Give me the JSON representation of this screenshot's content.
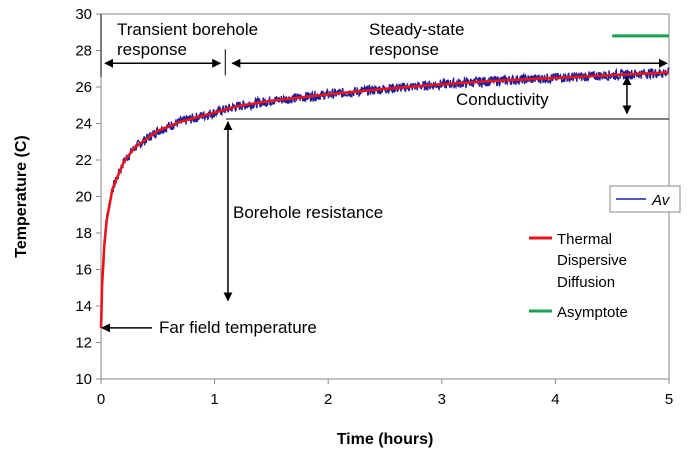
{
  "chart_data": {
    "type": "line",
    "xlabel": "Time (hours)",
    "ylabel": "Temperature (C)",
    "xlim": [
      0,
      5
    ],
    "ylim": [
      10,
      30
    ],
    "x_ticks": [
      "0",
      "1",
      "2",
      "3",
      "4",
      "5"
    ],
    "y_ticks": [
      "10",
      "12",
      "14",
      "16",
      "18",
      "20",
      "22",
      "24",
      "26",
      "28",
      "30"
    ],
    "grid": false,
    "series": [
      {
        "name": "Av",
        "style": "noisy-measured",
        "color": "#1f1f9a",
        "x": [
          0,
          0.01,
          0.03,
          0.05,
          0.1,
          0.2,
          0.3,
          0.5,
          0.7,
          1.0,
          1.2,
          1.5,
          2.0,
          2.5,
          3.0,
          3.5,
          4.0,
          4.5,
          5.0
        ],
        "y": [
          12.8,
          15.2,
          17.4,
          18.7,
          20.4,
          21.9,
          22.7,
          23.6,
          24.1,
          24.6,
          24.95,
          25.25,
          25.6,
          25.9,
          26.15,
          26.35,
          26.5,
          26.65,
          26.8
        ]
      },
      {
        "name": "Thermal Dispersive Diffusion",
        "legend_lines": [
          "Thermal",
          "Dispersive",
          "Diffusion"
        ],
        "style": "line",
        "color": "#e8141b",
        "x": [
          0,
          0.01,
          0.03,
          0.05,
          0.1,
          0.2,
          0.3,
          0.5,
          0.7,
          1.0,
          1.2,
          1.5,
          2.0,
          2.5,
          3.0,
          3.5,
          4.0,
          4.5,
          5.0
        ],
        "y": [
          12.8,
          15.2,
          17.4,
          18.7,
          20.4,
          21.9,
          22.7,
          23.6,
          24.1,
          24.6,
          24.95,
          25.25,
          25.6,
          25.9,
          26.15,
          26.35,
          26.5,
          26.65,
          26.8
        ]
      },
      {
        "name": "Asymptote",
        "style": "line",
        "color": "#1aa050",
        "x": [
          4.5,
          5.0
        ],
        "y": [
          28.8,
          28.8
        ]
      }
    ],
    "legend_fragment": "Av",
    "annotations": {
      "transient_line1": "Transient borehole",
      "transient_line2": "response",
      "steady_line1": "Steady-state",
      "steady_line2": "response",
      "conductivity": "Conductivity",
      "borehole_resistance": "Borehole resistance",
      "far_field": "Far field temperature"
    },
    "reference_lines": {
      "response_arrow_y": 27.3,
      "transient_end_x": 1.05,
      "steady_level": 24.25,
      "steady_level_start_x": 1.1,
      "far_field_level": 12.8
    }
  }
}
